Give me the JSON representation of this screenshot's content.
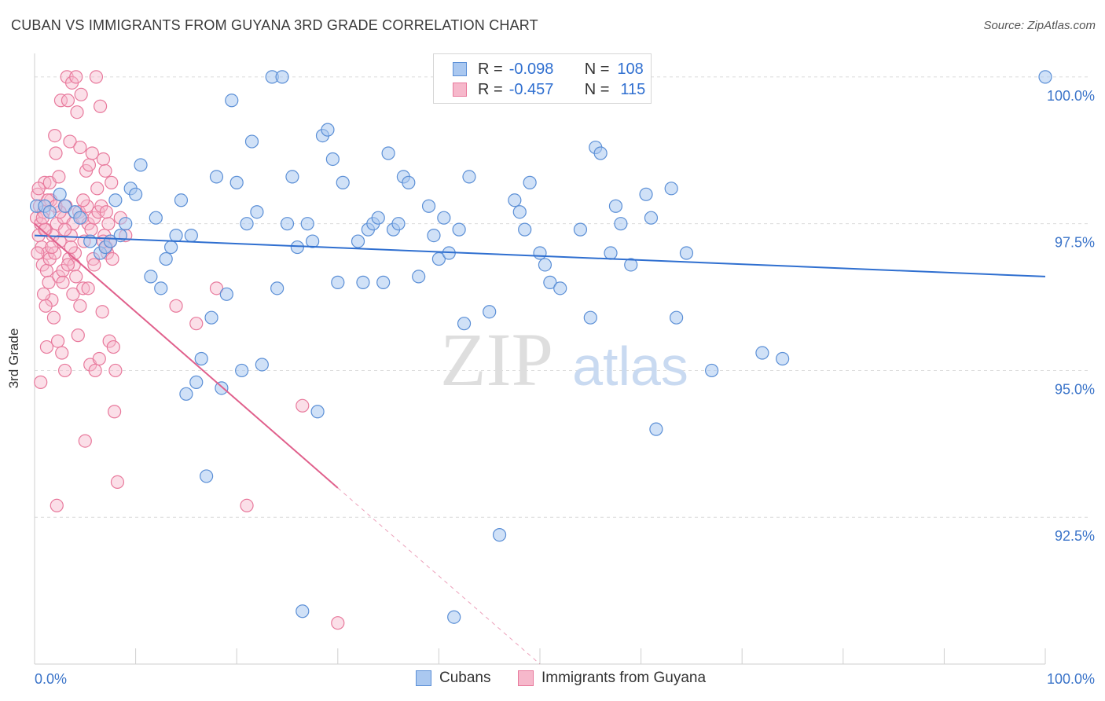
{
  "title": "CUBAN VS IMMIGRANTS FROM GUYANA 3RD GRADE CORRELATION CHART",
  "source": "Source: ZipAtlas.com",
  "watermark": {
    "zip": "ZIP",
    "atlas": "atlas"
  },
  "legend_top": {
    "rows": [
      {
        "r_label": "R =",
        "r_value": "-0.098",
        "n_label": "N =",
        "n_value": "108"
      },
      {
        "r_label": "R =",
        "r_value": "-0.457",
        "n_label": "N =",
        "n_value": "115"
      }
    ]
  },
  "legend_bottom": [
    "Cubans",
    "Immigrants from Guyana"
  ],
  "colors": {
    "cubans_fill": "#aac8f0",
    "cubans_stroke": "#5b8fd6",
    "cubans_line": "#2f6fd0",
    "guyana_fill": "#f6b8cb",
    "guyana_stroke": "#e8799c",
    "guyana_line": "#e0608c",
    "axis_text": "#3b74c9",
    "grid": "#dcdcdc"
  },
  "chart_data": {
    "type": "scatter",
    "xlabel": "",
    "ylabel": "3rd Grade",
    "xlim": [
      0,
      100
    ],
    "ylim": [
      90.0,
      100.4
    ],
    "x_ticks_labels": [
      "0.0%",
      "100.0%"
    ],
    "y_ticks": [
      92.5,
      95.0,
      97.5,
      100.0
    ],
    "y_tick_labels": [
      "92.5%",
      "95.0%",
      "97.5%",
      "100.0%"
    ],
    "grid": "horizontal dashed",
    "legend_position": "top-center",
    "series": [
      {
        "name": "Cubans",
        "R": -0.098,
        "N": 108,
        "trend": {
          "x": [
            0,
            100
          ],
          "y": [
            97.3,
            96.6
          ]
        },
        "points": [
          [
            0.2,
            97.8
          ],
          [
            1,
            97.8
          ],
          [
            1.5,
            97.7
          ],
          [
            2.5,
            98.0
          ],
          [
            3,
            97.8
          ],
          [
            4,
            97.7
          ],
          [
            4.5,
            97.6
          ],
          [
            5.5,
            97.2
          ],
          [
            6.5,
            97.0
          ],
          [
            7,
            97.1
          ],
          [
            7.5,
            97.2
          ],
          [
            8,
            97.9
          ],
          [
            8.5,
            97.3
          ],
          [
            9,
            97.5
          ],
          [
            10.5,
            98.5
          ],
          [
            9.5,
            98.1
          ],
          [
            10,
            98.0
          ],
          [
            11.5,
            96.6
          ],
          [
            12,
            97.6
          ],
          [
            12.5,
            96.4
          ],
          [
            13,
            96.9
          ],
          [
            13.5,
            97.1
          ],
          [
            14,
            97.3
          ],
          [
            14.5,
            97.9
          ],
          [
            15,
            94.6
          ],
          [
            15.5,
            97.3
          ],
          [
            16,
            94.8
          ],
          [
            16.5,
            95.2
          ],
          [
            17,
            93.2
          ],
          [
            17.5,
            95.9
          ],
          [
            18,
            98.3
          ],
          [
            18.5,
            94.7
          ],
          [
            19,
            96.3
          ],
          [
            19.5,
            99.6
          ],
          [
            20,
            98.2
          ],
          [
            20.5,
            95.0
          ],
          [
            21,
            97.5
          ],
          [
            21.5,
            98.9
          ],
          [
            22,
            97.7
          ],
          [
            22.5,
            95.1
          ],
          [
            23.5,
            100.0
          ],
          [
            24,
            96.4
          ],
          [
            24.5,
            100.0
          ],
          [
            25,
            97.5
          ],
          [
            25.5,
            98.3
          ],
          [
            26,
            97.1
          ],
          [
            26.5,
            90.9
          ],
          [
            27,
            97.5
          ],
          [
            27.5,
            97.2
          ],
          [
            28,
            94.3
          ],
          [
            28.5,
            99.0
          ],
          [
            29,
            99.1
          ],
          [
            29.5,
            98.6
          ],
          [
            30,
            96.5
          ],
          [
            30.5,
            98.2
          ],
          [
            32,
            97.2
          ],
          [
            32.5,
            96.5
          ],
          [
            33,
            97.4
          ],
          [
            33.5,
            97.5
          ],
          [
            34,
            97.6
          ],
          [
            34.5,
            96.5
          ],
          [
            35,
            98.7
          ],
          [
            35.5,
            97.4
          ],
          [
            36,
            97.5
          ],
          [
            36.5,
            98.3
          ],
          [
            37,
            98.2
          ],
          [
            38,
            96.6
          ],
          [
            39,
            97.8
          ],
          [
            39.5,
            97.3
          ],
          [
            40,
            96.9
          ],
          [
            40.5,
            97.6
          ],
          [
            41,
            97.0
          ],
          [
            41.5,
            90.8
          ],
          [
            42,
            97.4
          ],
          [
            42.5,
            95.8
          ],
          [
            43,
            98.3
          ],
          [
            45,
            96.0
          ],
          [
            46,
            92.2
          ],
          [
            47.5,
            97.9
          ],
          [
            48,
            97.7
          ],
          [
            48.5,
            97.4
          ],
          [
            49,
            98.2
          ],
          [
            50,
            97.0
          ],
          [
            50.5,
            96.8
          ],
          [
            51,
            96.5
          ],
          [
            52,
            96.4
          ],
          [
            54,
            97.4
          ],
          [
            55,
            95.9
          ],
          [
            55.5,
            98.8
          ],
          [
            56,
            98.7
          ],
          [
            57,
            97.0
          ],
          [
            57.5,
            97.8
          ],
          [
            58,
            97.5
          ],
          [
            59,
            96.8
          ],
          [
            60.5,
            98.0
          ],
          [
            61,
            97.6
          ],
          [
            61.5,
            94.0
          ],
          [
            63,
            98.1
          ],
          [
            63.5,
            95.9
          ],
          [
            64.5,
            97.0
          ],
          [
            67,
            95.0
          ],
          [
            72,
            95.3
          ],
          [
            74,
            95.2
          ],
          [
            100,
            100.0
          ]
        ]
      },
      {
        "name": "Immigrants from Guyana",
        "R": -0.457,
        "N": 115,
        "trend": {
          "x": [
            0,
            30
          ],
          "y": [
            97.5,
            93.0
          ]
        },
        "trend_dashed": {
          "x": [
            30,
            50
          ],
          "y": [
            93.0,
            90.0
          ]
        },
        "points": [
          [
            0.2,
            97.6
          ],
          [
            0.3,
            98.0
          ],
          [
            0.4,
            97.3
          ],
          [
            0.5,
            97.8
          ],
          [
            0.6,
            97.5
          ],
          [
            0.7,
            97.1
          ],
          [
            0.8,
            96.8
          ],
          [
            0.9,
            97.7
          ],
          [
            1,
            98.2
          ],
          [
            1.1,
            97.4
          ],
          [
            1.2,
            96.7
          ],
          [
            1.3,
            97.0
          ],
          [
            1.4,
            96.5
          ],
          [
            1.5,
            98.2
          ],
          [
            1.6,
            97.9
          ],
          [
            1.7,
            96.2
          ],
          [
            1.8,
            97.3
          ],
          [
            1.9,
            95.9
          ],
          [
            2,
            99.0
          ],
          [
            2.1,
            98.7
          ],
          [
            2.2,
            97.5
          ],
          [
            2.3,
            95.5
          ],
          [
            2.4,
            96.6
          ],
          [
            2.5,
            97.2
          ],
          [
            2.6,
            99.6
          ],
          [
            2.7,
            95.3
          ],
          [
            2.8,
            96.7
          ],
          [
            2.9,
            97.6
          ],
          [
            3,
            95.0
          ],
          [
            3.1,
            97.8
          ],
          [
            3.2,
            100.0
          ],
          [
            3.3,
            99.6
          ],
          [
            3.4,
            96.9
          ],
          [
            3.5,
            98.9
          ],
          [
            3.6,
            97.3
          ],
          [
            3.7,
            99.9
          ],
          [
            3.8,
            97.5
          ],
          [
            3.9,
            96.8
          ],
          [
            4,
            97.0
          ],
          [
            4.1,
            100.0
          ],
          [
            4.2,
            99.4
          ],
          [
            4.3,
            95.6
          ],
          [
            4.4,
            97.7
          ],
          [
            4.5,
            96.1
          ],
          [
            4.6,
            99.7
          ],
          [
            4.7,
            97.6
          ],
          [
            4.8,
            96.4
          ],
          [
            4.9,
            97.2
          ],
          [
            5,
            93.8
          ],
          [
            5.1,
            98.4
          ],
          [
            5.2,
            97.8
          ],
          [
            5.3,
            97.5
          ],
          [
            5.4,
            98.5
          ],
          [
            5.5,
            95.1
          ],
          [
            5.6,
            97.4
          ],
          [
            5.7,
            98.7
          ],
          [
            5.8,
            96.9
          ],
          [
            5.9,
            97.6
          ],
          [
            6,
            95.0
          ],
          [
            6.1,
            100.0
          ],
          [
            6.2,
            98.1
          ],
          [
            6.3,
            97.7
          ],
          [
            6.4,
            95.2
          ],
          [
            6.5,
            99.5
          ],
          [
            6.6,
            97.8
          ],
          [
            6.7,
            96.0
          ],
          [
            6.8,
            98.6
          ],
          [
            6.9,
            97.3
          ],
          [
            7,
            98.4
          ],
          [
            7.1,
            97.1
          ],
          [
            7.2,
            97.0
          ],
          [
            7.3,
            97.5
          ],
          [
            7.4,
            95.5
          ],
          [
            7.5,
            97.2
          ],
          [
            7.6,
            98.2
          ],
          [
            7.7,
            96.9
          ],
          [
            7.8,
            95.4
          ],
          [
            7.9,
            94.3
          ],
          [
            8,
            95.0
          ],
          [
            8.2,
            93.1
          ],
          [
            8.5,
            97.6
          ],
          [
            9,
            97.3
          ],
          [
            0.6,
            94.8
          ],
          [
            1.2,
            95.4
          ],
          [
            2.2,
            92.7
          ],
          [
            3.8,
            96.3
          ],
          [
            5.3,
            96.4
          ],
          [
            14,
            96.1
          ],
          [
            16,
            95.8
          ],
          [
            18,
            96.4
          ],
          [
            21,
            92.7
          ],
          [
            26.5,
            94.4
          ],
          [
            30,
            90.7
          ],
          [
            1,
            97.4
          ],
          [
            1.5,
            96.9
          ],
          [
            2,
            97.0
          ],
          [
            2.5,
            97.7
          ],
          [
            3,
            97.4
          ],
          [
            0.4,
            98.1
          ],
          [
            0.9,
            96.3
          ],
          [
            1.7,
            97.1
          ],
          [
            2.4,
            98.3
          ],
          [
            3.3,
            96.8
          ],
          [
            4.5,
            98.8
          ],
          [
            6.8,
            97.2
          ],
          [
            0.8,
            97.6
          ],
          [
            1.3,
            97.9
          ],
          [
            2.8,
            96.5
          ],
          [
            3.6,
            97.1
          ],
          [
            4.1,
            96.6
          ],
          [
            5.9,
            96.8
          ],
          [
            0.3,
            97.0
          ],
          [
            1.1,
            96.1
          ],
          [
            2.1,
            97.8
          ],
          [
            4.8,
            97.9
          ],
          [
            7.1,
            97.7
          ]
        ]
      }
    ]
  }
}
